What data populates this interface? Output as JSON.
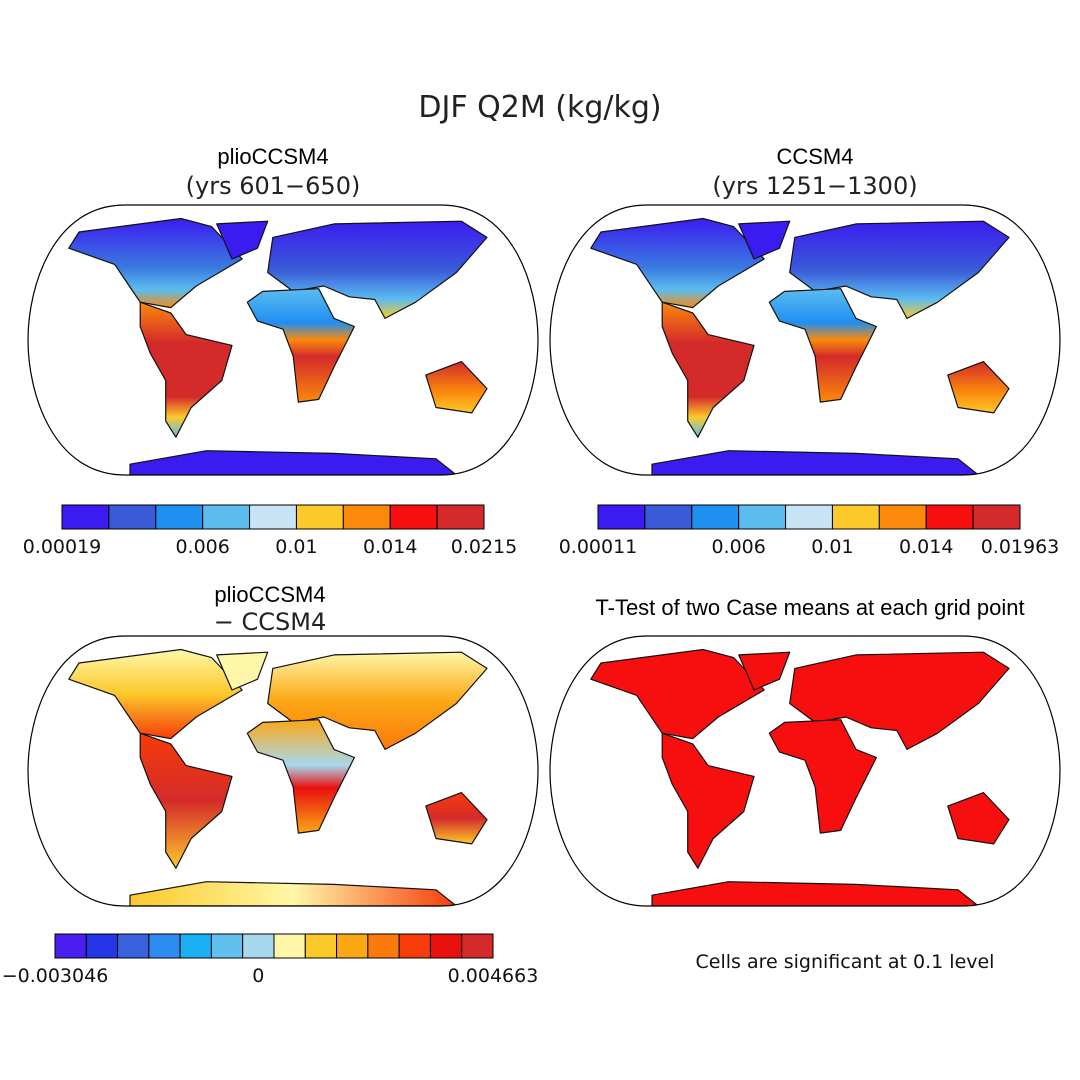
{
  "title": "DJF Q2M (kg/kg)",
  "panels": [
    {
      "title": "plioCCSM4",
      "subtitle": "(yrs 601−650)",
      "colorbar": {
        "colors": [
          "#3b1cf0",
          "#3a5ad8",
          "#1f8ff0",
          "#5bbcf0",
          "#c8e4f4",
          "#fcc92a",
          "#fb8a0c",
          "#f70f0f",
          "#d42a2a"
        ],
        "labels": [
          "0.00019",
          "0.006",
          "0.01",
          "0.014",
          "0.0215"
        ]
      }
    },
    {
      "title": "CCSM4",
      "subtitle": "(yrs 1251−1300)",
      "colorbar": {
        "colors": [
          "#3b1cf0",
          "#3a5ad8",
          "#1f8ff0",
          "#5bbcf0",
          "#c8e4f4",
          "#fcc92a",
          "#fb8a0c",
          "#f70f0f",
          "#d42a2a"
        ],
        "labels": [
          "0.00011",
          "0.006",
          "0.01",
          "0.014",
          "0.01963"
        ]
      }
    },
    {
      "title": "plioCCSM4",
      "subtitle": "− CCSM4",
      "colorbar": {
        "colors": [
          "#4b1ef0",
          "#2436e8",
          "#3a62dc",
          "#2d8cf0",
          "#1ab0f4",
          "#62c0ee",
          "#a8d8ee",
          "#fff7a8",
          "#fcc92a",
          "#fca815",
          "#fb7a0c",
          "#f73c0a",
          "#e80f0f",
          "#d42a2a"
        ],
        "labels": [
          "−0.003046",
          "0",
          "0.004663"
        ]
      }
    },
    {
      "title": "T-Test of two Case means at each grid point"
    }
  ],
  "footnote": "Cells are significant at 0.1 level"
}
